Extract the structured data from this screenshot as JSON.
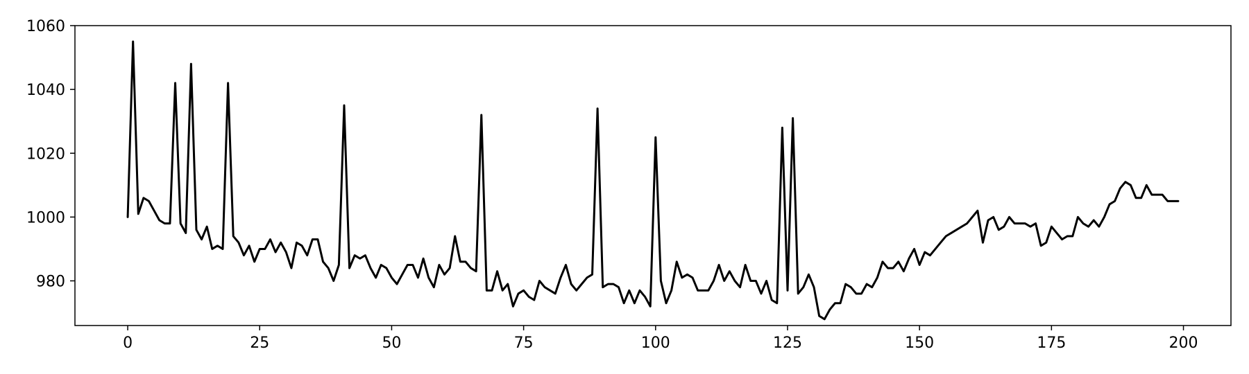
{
  "chart_data": {
    "type": "line",
    "title": "",
    "xlabel": "",
    "ylabel": "",
    "xlim": [
      -10,
      209
    ],
    "ylim": [
      966,
      1060
    ],
    "x_ticks": [
      0,
      25,
      50,
      75,
      100,
      125,
      150,
      175,
      200
    ],
    "x_tick_labels": [
      "0",
      "25",
      "50",
      "75",
      "100",
      "125",
      "150",
      "175",
      "200"
    ],
    "y_ticks": [
      980,
      1000,
      1020,
      1040,
      1060
    ],
    "y_tick_labels": [
      "980",
      "1000",
      "1020",
      "1040",
      "1060"
    ],
    "grid": false,
    "legend": "none",
    "series": [
      {
        "color": "#000000",
        "x_start": 0,
        "x_step": 1,
        "values": [
          1000,
          1055,
          1001,
          1006,
          1005,
          1002,
          999,
          998,
          998,
          1042,
          998,
          995,
          1048,
          996,
          993,
          997,
          990,
          991,
          990,
          1042,
          994,
          992,
          988,
          991,
          986,
          990,
          990,
          993,
          989,
          992,
          989,
          984,
          992,
          991,
          988,
          993,
          993,
          986,
          984,
          980,
          985,
          1035,
          984,
          988,
          987,
          988,
          984,
          981,
          985,
          984,
          981,
          979,
          982,
          985,
          985,
          981,
          987,
          981,
          978,
          985,
          982,
          984,
          994,
          986,
          986,
          984,
          983,
          1032,
          977,
          977,
          983,
          977,
          979,
          972,
          976,
          977,
          975,
          974,
          980,
          978,
          977,
          976,
          981,
          985,
          979,
          977,
          979,
          981,
          982,
          1034,
          978,
          979,
          979,
          978,
          973,
          977,
          973,
          977,
          975,
          972,
          1025,
          980,
          973,
          977,
          986,
          981,
          982,
          981,
          977,
          977,
          977,
          980,
          985,
          980,
          983,
          980,
          978,
          985,
          980,
          980,
          976,
          980,
          974,
          973,
          1028,
          977,
          1031,
          976,
          978,
          982,
          978,
          969,
          968,
          971,
          973,
          973,
          979,
          978,
          976,
          976,
          979,
          978,
          981,
          986,
          984,
          984,
          986,
          983,
          987,
          990,
          985,
          989,
          988,
          990,
          992,
          994,
          995,
          996,
          997,
          998,
          1000,
          1002,
          992,
          999,
          1000,
          996,
          997,
          1000,
          998,
          998,
          998,
          997,
          998,
          991,
          992,
          997,
          995,
          993,
          994,
          994,
          1000,
          998,
          997,
          999,
          997,
          1000,
          1004,
          1005,
          1009,
          1011,
          1010,
          1006,
          1006,
          1010,
          1007,
          1007,
          1007,
          1005,
          1005,
          1005
        ]
      }
    ]
  }
}
